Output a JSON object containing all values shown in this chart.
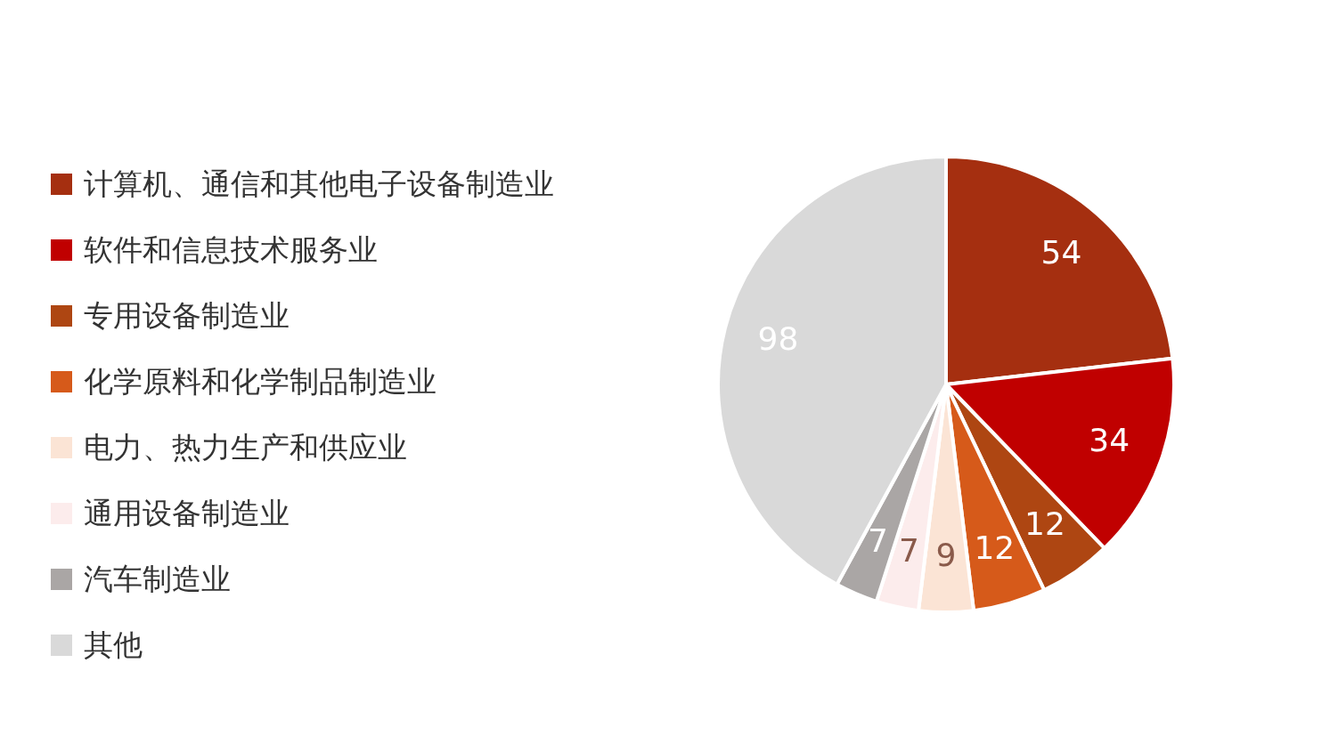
{
  "chart_data": {
    "type": "pie",
    "categories": [
      "计算机、通信和其他电子设备制造业",
      "软件和信息技术服务业",
      "专用设备制造业",
      "化学原料和化学制品制造业",
      "电力、热力生产和供应业",
      "通用设备制造业",
      "汽车制造业",
      "其他"
    ],
    "values": [
      54,
      34,
      12,
      12,
      9,
      7,
      7,
      98
    ],
    "colors": [
      "#a52f10",
      "#c00000",
      "#ae4612",
      "#d65a1a",
      "#fbe4d5",
      "#fcecec",
      "#aaa6a5",
      "#d9d9d9"
    ],
    "data_labels": true,
    "legend": "left"
  }
}
